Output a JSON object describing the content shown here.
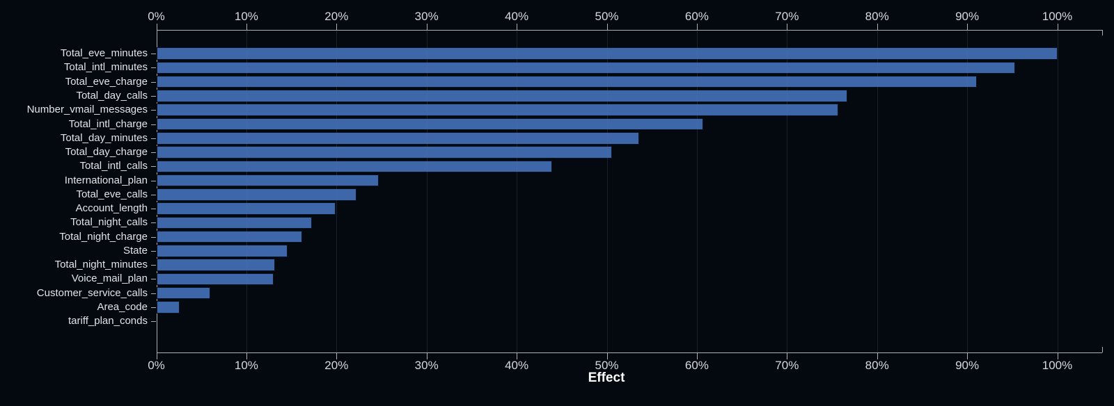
{
  "chart_data": {
    "type": "bar",
    "orientation": "horizontal",
    "title": "",
    "xlabel": "Effect",
    "ylabel": "",
    "x_tick_labels": [
      "0%",
      "10%",
      "20%",
      "30%",
      "40%",
      "50%",
      "60%",
      "70%",
      "80%",
      "90%",
      "100%"
    ],
    "x_tick_values": [
      0,
      10,
      20,
      30,
      40,
      50,
      60,
      70,
      80,
      90,
      100
    ],
    "xlim": [
      0,
      105
    ],
    "grid": "vertical",
    "legend": "none",
    "categories": [
      "Total_eve_minutes",
      "Total_intl_minutes",
      "Total_eve_charge",
      "Total_day_calls",
      "Number_vmail_messages",
      "Total_intl_charge",
      "Total_day_minutes",
      "Total_day_charge",
      "Total_intl_calls",
      "International_plan",
      "Total_eve_calls",
      "Account_length",
      "Total_night_calls",
      "Total_night_charge",
      "State",
      "Total_night_minutes",
      "Voice_mail_plan",
      "Customer_service_calls",
      "Area_code",
      "tariff_plan_conds"
    ],
    "values": [
      100.0,
      95.3,
      91.1,
      76.7,
      75.7,
      60.7,
      53.6,
      50.6,
      43.9,
      24.7,
      22.2,
      19.9,
      17.3,
      16.2,
      14.6,
      13.2,
      13.0,
      6.0,
      2.6,
      0.0
    ],
    "value_unit": "%"
  },
  "colors": {
    "background": "#040910",
    "bar_fill": "#3E67A9",
    "bar_border": "#0B1322",
    "axis": "#A9B0B8",
    "tick_label": "#D6D9DD",
    "category_label": "#E2E4E7",
    "axis_title": "#FFFFFF"
  }
}
